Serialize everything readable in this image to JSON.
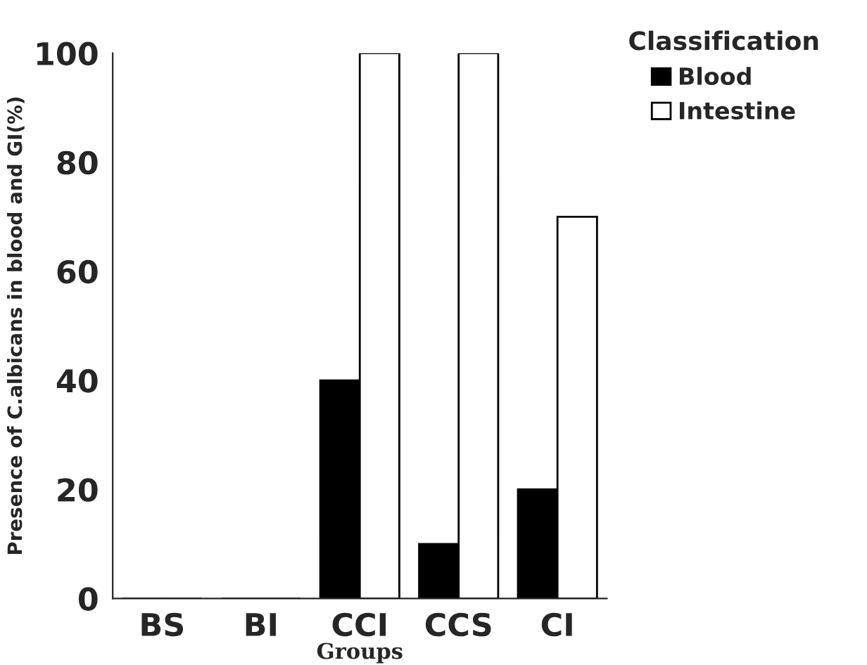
{
  "chart_data": {
    "type": "bar",
    "xlabel": "Groups",
    "ylabel": "Presence of C.albicans in blood and GI(%)",
    "legend_title": "Classification",
    "categories": [
      "BS",
      "BI",
      "CCI",
      "CCS",
      "CI"
    ],
    "series": [
      {
        "name": "Blood",
        "color": "#000000",
        "values": [
          0,
          0,
          40,
          10,
          20
        ]
      },
      {
        "name": "Intestine",
        "color": "#ffffff",
        "values": [
          0,
          0,
          100,
          100,
          70
        ]
      }
    ],
    "ylim": [
      0,
      100
    ],
    "yticks": [
      0,
      20,
      40,
      60,
      80,
      100
    ],
    "grid": false,
    "legend": "top right"
  }
}
